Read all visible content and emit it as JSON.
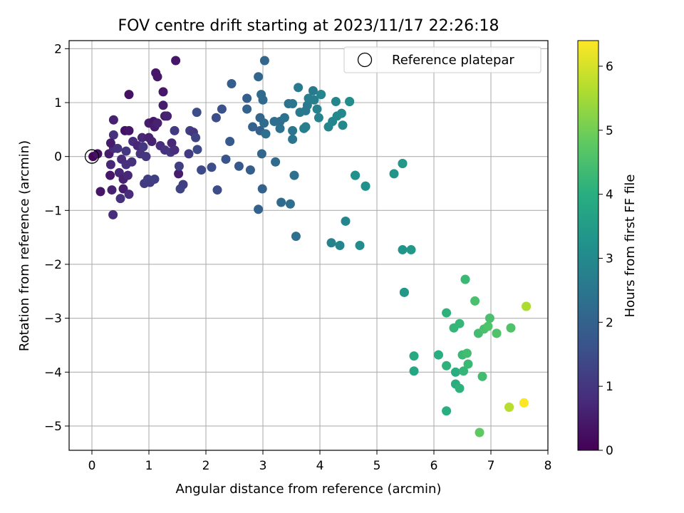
{
  "chart_data": {
    "type": "scatter",
    "title": "FOV centre drift starting at 2023/11/17 22:26:18",
    "xlabel": "Angular distance from reference (arcmin)",
    "ylabel": "Rotation from reference (arcmin)",
    "xlim": [
      -0.4,
      8.0
    ],
    "ylim": [
      -5.45,
      2.15
    ],
    "x_ticks": [
      0,
      1,
      2,
      3,
      4,
      5,
      6,
      7,
      8
    ],
    "y_ticks": [
      2,
      1,
      0,
      -1,
      -2,
      -3,
      -4,
      -5
    ],
    "x_tick_labels": [
      "0",
      "1",
      "2",
      "3",
      "4",
      "5",
      "6",
      "7",
      "8"
    ],
    "y_tick_labels": [
      "2",
      "1",
      "0",
      "−1",
      "−2",
      "−3",
      "−4",
      "−5"
    ],
    "grid": true,
    "legend": {
      "placement": "top-right",
      "entries": [
        "Reference platepar"
      ]
    },
    "colorbar": {
      "label": "Hours from first FF file",
      "colormap": "viridis",
      "range": [
        0,
        6.4
      ],
      "ticks": [
        0,
        1,
        2,
        3,
        4,
        5,
        6
      ],
      "tick_labels": [
        "0",
        "1",
        "2",
        "3",
        "4",
        "5",
        "6"
      ]
    },
    "reference_point": {
      "x": 0,
      "y": 0
    },
    "points": [
      {
        "x": 0.02,
        "y": 0.0,
        "h": 0.1
      },
      {
        "x": 0.1,
        "y": 0.05,
        "h": 0.3
      },
      {
        "x": 0.15,
        "y": -0.65,
        "h": 0.4
      },
      {
        "x": 0.3,
        "y": 0.05,
        "h": 0.5
      },
      {
        "x": 0.35,
        "y": -0.62,
        "h": 0.6
      },
      {
        "x": 0.32,
        "y": -0.35,
        "h": 0.4
      },
      {
        "x": 0.33,
        "y": -0.15,
        "h": 0.7
      },
      {
        "x": 0.38,
        "y": 0.15,
        "h": 0.8
      },
      {
        "x": 0.38,
        "y": 0.4,
        "h": 0.9
      },
      {
        "x": 0.38,
        "y": 0.68,
        "h": 0.6
      },
      {
        "x": 0.33,
        "y": 0.25,
        "h": 0.5
      },
      {
        "x": 0.37,
        "y": -1.08,
        "h": 0.8
      },
      {
        "x": 0.45,
        "y": 0.15,
        "h": 0.9
      },
      {
        "x": 0.48,
        "y": -0.3,
        "h": 0.7
      },
      {
        "x": 0.5,
        "y": -0.78,
        "h": 0.9
      },
      {
        "x": 0.52,
        "y": -0.05,
        "h": 0.8
      },
      {
        "x": 0.55,
        "y": -0.42,
        "h": 0.6
      },
      {
        "x": 0.55,
        "y": -0.6,
        "h": 0.5
      },
      {
        "x": 0.58,
        "y": 0.48,
        "h": 0.3
      },
      {
        "x": 0.6,
        "y": -0.15,
        "h": 0.9
      },
      {
        "x": 0.6,
        "y": 0.1,
        "h": 1.0
      },
      {
        "x": 0.63,
        "y": -0.35,
        "h": 0.7
      },
      {
        "x": 0.65,
        "y": -0.7,
        "h": 0.8
      },
      {
        "x": 0.65,
        "y": 0.48,
        "h": 0.4
      },
      {
        "x": 0.65,
        "y": 1.15,
        "h": 0.3
      },
      {
        "x": 0.7,
        "y": -0.1,
        "h": 0.9
      },
      {
        "x": 0.72,
        "y": 0.28,
        "h": 0.8
      },
      {
        "x": 0.8,
        "y": 0.2,
        "h": 0.7
      },
      {
        "x": 0.85,
        "y": 0.05,
        "h": 0.9
      },
      {
        "x": 0.88,
        "y": 0.35,
        "h": 0.7
      },
      {
        "x": 0.9,
        "y": 0.18,
        "h": 1.0
      },
      {
        "x": 0.92,
        "y": -0.5,
        "h": 1.1
      },
      {
        "x": 0.95,
        "y": 0.0,
        "h": 1.0
      },
      {
        "x": 0.98,
        "y": -0.42,
        "h": 1.2
      },
      {
        "x": 1.0,
        "y": 0.62,
        "h": 0.5
      },
      {
        "x": 1.0,
        "y": 0.35,
        "h": 0.6
      },
      {
        "x": 1.02,
        "y": -0.48,
        "h": 1.1
      },
      {
        "x": 1.05,
        "y": 0.28,
        "h": 0.6
      },
      {
        "x": 1.08,
        "y": 0.65,
        "h": 0.4
      },
      {
        "x": 1.1,
        "y": -0.42,
        "h": 1.2
      },
      {
        "x": 1.1,
        "y": 0.55,
        "h": 0.5
      },
      {
        "x": 1.12,
        "y": 1.55,
        "h": 0.4
      },
      {
        "x": 1.15,
        "y": 1.48,
        "h": 0.4
      },
      {
        "x": 1.15,
        "y": 0.62,
        "h": 0.6
      },
      {
        "x": 1.2,
        "y": 0.2,
        "h": 0.8
      },
      {
        "x": 1.25,
        "y": 0.95,
        "h": 0.5
      },
      {
        "x": 1.25,
        "y": 1.2,
        "h": 0.4
      },
      {
        "x": 1.28,
        "y": 0.75,
        "h": 0.5
      },
      {
        "x": 1.28,
        "y": 0.12,
        "h": 0.9
      },
      {
        "x": 1.32,
        "y": 0.75,
        "h": 0.6
      },
      {
        "x": 1.38,
        "y": 0.08,
        "h": 1.0
      },
      {
        "x": 1.4,
        "y": 0.25,
        "h": 0.7
      },
      {
        "x": 1.45,
        "y": 0.12,
        "h": 0.8
      },
      {
        "x": 1.45,
        "y": 0.48,
        "h": 1.1
      },
      {
        "x": 1.47,
        "y": 1.78,
        "h": 0.4
      },
      {
        "x": 1.52,
        "y": -0.32,
        "h": 0.5
      },
      {
        "x": 1.53,
        "y": -0.18,
        "h": 1.2
      },
      {
        "x": 1.55,
        "y": -0.6,
        "h": 1.3
      },
      {
        "x": 1.6,
        "y": -0.52,
        "h": 1.2
      },
      {
        "x": 1.7,
        "y": 0.05,
        "h": 1.1
      },
      {
        "x": 1.72,
        "y": 0.48,
        "h": 1.2
      },
      {
        "x": 1.78,
        "y": 0.45,
        "h": 1.0
      },
      {
        "x": 1.82,
        "y": 0.35,
        "h": 1.3
      },
      {
        "x": 1.84,
        "y": 0.82,
        "h": 1.5
      },
      {
        "x": 1.85,
        "y": 0.13,
        "h": 1.4
      },
      {
        "x": 1.92,
        "y": -0.25,
        "h": 1.4
      },
      {
        "x": 2.1,
        "y": -0.2,
        "h": 1.5
      },
      {
        "x": 2.18,
        "y": 0.72,
        "h": 1.5
      },
      {
        "x": 2.2,
        "y": -0.62,
        "h": 1.5
      },
      {
        "x": 2.28,
        "y": 0.88,
        "h": 1.6
      },
      {
        "x": 2.35,
        "y": -0.05,
        "h": 1.7
      },
      {
        "x": 2.42,
        "y": 0.28,
        "h": 1.8
      },
      {
        "x": 2.45,
        "y": 1.35,
        "h": 1.9
      },
      {
        "x": 2.58,
        "y": -0.18,
        "h": 1.8
      },
      {
        "x": 2.72,
        "y": 1.08,
        "h": 1.9
      },
      {
        "x": 2.72,
        "y": 0.88,
        "h": 2.0
      },
      {
        "x": 2.78,
        "y": -0.25,
        "h": 1.9
      },
      {
        "x": 2.82,
        "y": 0.55,
        "h": 2.0
      },
      {
        "x": 2.92,
        "y": -0.98,
        "h": 2.0
      },
      {
        "x": 2.92,
        "y": 1.48,
        "h": 2.1
      },
      {
        "x": 2.95,
        "y": 0.72,
        "h": 2.1
      },
      {
        "x": 2.95,
        "y": 0.48,
        "h": 2.0
      },
      {
        "x": 2.97,
        "y": 1.15,
        "h": 2.2
      },
      {
        "x": 2.98,
        "y": 0.05,
        "h": 2.1
      },
      {
        "x": 2.99,
        "y": -0.6,
        "h": 2.0
      },
      {
        "x": 3.0,
        "y": 1.05,
        "h": 2.2
      },
      {
        "x": 3.02,
        "y": 0.62,
        "h": 2.2
      },
      {
        "x": 3.03,
        "y": 1.78,
        "h": 2.1
      },
      {
        "x": 3.05,
        "y": 0.42,
        "h": 2.3
      },
      {
        "x": 3.2,
        "y": 0.65,
        "h": 2.3
      },
      {
        "x": 3.22,
        "y": -0.1,
        "h": 2.2
      },
      {
        "x": 3.3,
        "y": 0.52,
        "h": 2.4
      },
      {
        "x": 3.3,
        "y": 0.65,
        "h": 2.3
      },
      {
        "x": 3.32,
        "y": -0.85,
        "h": 2.2
      },
      {
        "x": 3.38,
        "y": 0.72,
        "h": 2.4
      },
      {
        "x": 3.45,
        "y": 0.98,
        "h": 2.4
      },
      {
        "x": 3.48,
        "y": -0.88,
        "h": 2.3
      },
      {
        "x": 3.52,
        "y": 0.48,
        "h": 2.5
      },
      {
        "x": 3.52,
        "y": 0.98,
        "h": 2.5
      },
      {
        "x": 3.52,
        "y": 0.32,
        "h": 2.5
      },
      {
        "x": 3.55,
        "y": -0.35,
        "h": 2.4
      },
      {
        "x": 3.58,
        "y": -1.48,
        "h": 2.3
      },
      {
        "x": 3.62,
        "y": 1.28,
        "h": 2.6
      },
      {
        "x": 3.65,
        "y": 0.82,
        "h": 2.6
      },
      {
        "x": 3.72,
        "y": 0.52,
        "h": 2.7
      },
      {
        "x": 3.75,
        "y": 0.55,
        "h": 2.7
      },
      {
        "x": 3.75,
        "y": 0.85,
        "h": 2.6
      },
      {
        "x": 3.78,
        "y": 0.95,
        "h": 2.6
      },
      {
        "x": 3.8,
        "y": 1.08,
        "h": 2.7
      },
      {
        "x": 3.88,
        "y": 1.22,
        "h": 2.6
      },
      {
        "x": 3.9,
        "y": 1.05,
        "h": 2.7
      },
      {
        "x": 3.95,
        "y": 0.88,
        "h": 2.8
      },
      {
        "x": 3.98,
        "y": 0.72,
        "h": 2.8
      },
      {
        "x": 4.02,
        "y": 1.15,
        "h": 2.8
      },
      {
        "x": 4.02,
        "y": 1.15,
        "h": 2.9
      },
      {
        "x": 4.15,
        "y": 0.55,
        "h": 2.9
      },
      {
        "x": 4.2,
        "y": -1.6,
        "h": 2.8
      },
      {
        "x": 4.22,
        "y": 0.65,
        "h": 2.9
      },
      {
        "x": 4.28,
        "y": 1.02,
        "h": 2.9
      },
      {
        "x": 4.3,
        "y": 0.75,
        "h": 3.0
      },
      {
        "x": 4.35,
        "y": -1.65,
        "h": 2.9
      },
      {
        "x": 4.38,
        "y": 0.8,
        "h": 3.0
      },
      {
        "x": 4.4,
        "y": 0.58,
        "h": 3.0
      },
      {
        "x": 4.45,
        "y": -1.2,
        "h": 2.9
      },
      {
        "x": 4.52,
        "y": 1.02,
        "h": 3.1
      },
      {
        "x": 4.52,
        "y": 1.02,
        "h": 3.1
      },
      {
        "x": 4.62,
        "y": -0.35,
        "h": 3.2
      },
      {
        "x": 4.62,
        "y": -0.35,
        "h": 3.2
      },
      {
        "x": 4.7,
        "y": -1.65,
        "h": 3.1
      },
      {
        "x": 4.8,
        "y": -0.55,
        "h": 3.2
      },
      {
        "x": 4.8,
        "y": -0.55,
        "h": 3.2
      },
      {
        "x": 5.3,
        "y": -0.32,
        "h": 3.3
      },
      {
        "x": 5.45,
        "y": -0.13,
        "h": 3.4
      },
      {
        "x": 5.45,
        "y": -0.13,
        "h": 3.4
      },
      {
        "x": 5.45,
        "y": -1.73,
        "h": 3.3
      },
      {
        "x": 5.48,
        "y": -2.52,
        "h": 3.4
      },
      {
        "x": 5.48,
        "y": -2.52,
        "h": 3.4
      },
      {
        "x": 5.6,
        "y": -1.73,
        "h": 3.4
      },
      {
        "x": 5.65,
        "y": -3.7,
        "h": 3.9
      },
      {
        "x": 5.65,
        "y": -3.98,
        "h": 3.8
      },
      {
        "x": 6.08,
        "y": -3.68,
        "h": 4.0
      },
      {
        "x": 6.08,
        "y": -3.68,
        "h": 4.0
      },
      {
        "x": 6.22,
        "y": -2.9,
        "h": 4.1
      },
      {
        "x": 6.22,
        "y": -3.88,
        "h": 4.1
      },
      {
        "x": 6.22,
        "y": -4.72,
        "h": 4.0
      },
      {
        "x": 6.35,
        "y": -3.18,
        "h": 4.2
      },
      {
        "x": 6.38,
        "y": -4.0,
        "h": 4.0
      },
      {
        "x": 6.38,
        "y": -4.22,
        "h": 4.0
      },
      {
        "x": 6.45,
        "y": -3.1,
        "h": 4.2
      },
      {
        "x": 6.45,
        "y": -4.3,
        "h": 4.1
      },
      {
        "x": 6.5,
        "y": -3.68,
        "h": 4.3
      },
      {
        "x": 6.52,
        "y": -3.98,
        "h": 4.2
      },
      {
        "x": 6.55,
        "y": -2.28,
        "h": 4.3
      },
      {
        "x": 6.55,
        "y": -2.28,
        "h": 4.3
      },
      {
        "x": 6.58,
        "y": -3.65,
        "h": 4.4
      },
      {
        "x": 6.6,
        "y": -3.85,
        "h": 4.3
      },
      {
        "x": 6.72,
        "y": -2.68,
        "h": 4.5
      },
      {
        "x": 6.78,
        "y": -3.28,
        "h": 4.4
      },
      {
        "x": 6.8,
        "y": -5.12,
        "h": 4.8
      },
      {
        "x": 6.85,
        "y": -4.08,
        "h": 4.4
      },
      {
        "x": 6.88,
        "y": -3.2,
        "h": 4.5
      },
      {
        "x": 6.95,
        "y": -3.15,
        "h": 4.6
      },
      {
        "x": 6.98,
        "y": -3.0,
        "h": 4.5
      },
      {
        "x": 7.1,
        "y": -3.28,
        "h": 4.6
      },
      {
        "x": 7.1,
        "y": -3.28,
        "h": 4.6
      },
      {
        "x": 7.32,
        "y": -4.65,
        "h": 5.7
      },
      {
        "x": 7.32,
        "y": -4.65,
        "h": 5.7
      },
      {
        "x": 7.35,
        "y": -3.18,
        "h": 4.6
      },
      {
        "x": 7.58,
        "y": -4.57,
        "h": 6.4
      },
      {
        "x": 7.58,
        "y": -4.57,
        "h": 6.4
      },
      {
        "x": 7.62,
        "y": -2.78,
        "h": 5.6
      },
      {
        "x": 7.62,
        "y": -2.78,
        "h": 5.6
      }
    ]
  }
}
